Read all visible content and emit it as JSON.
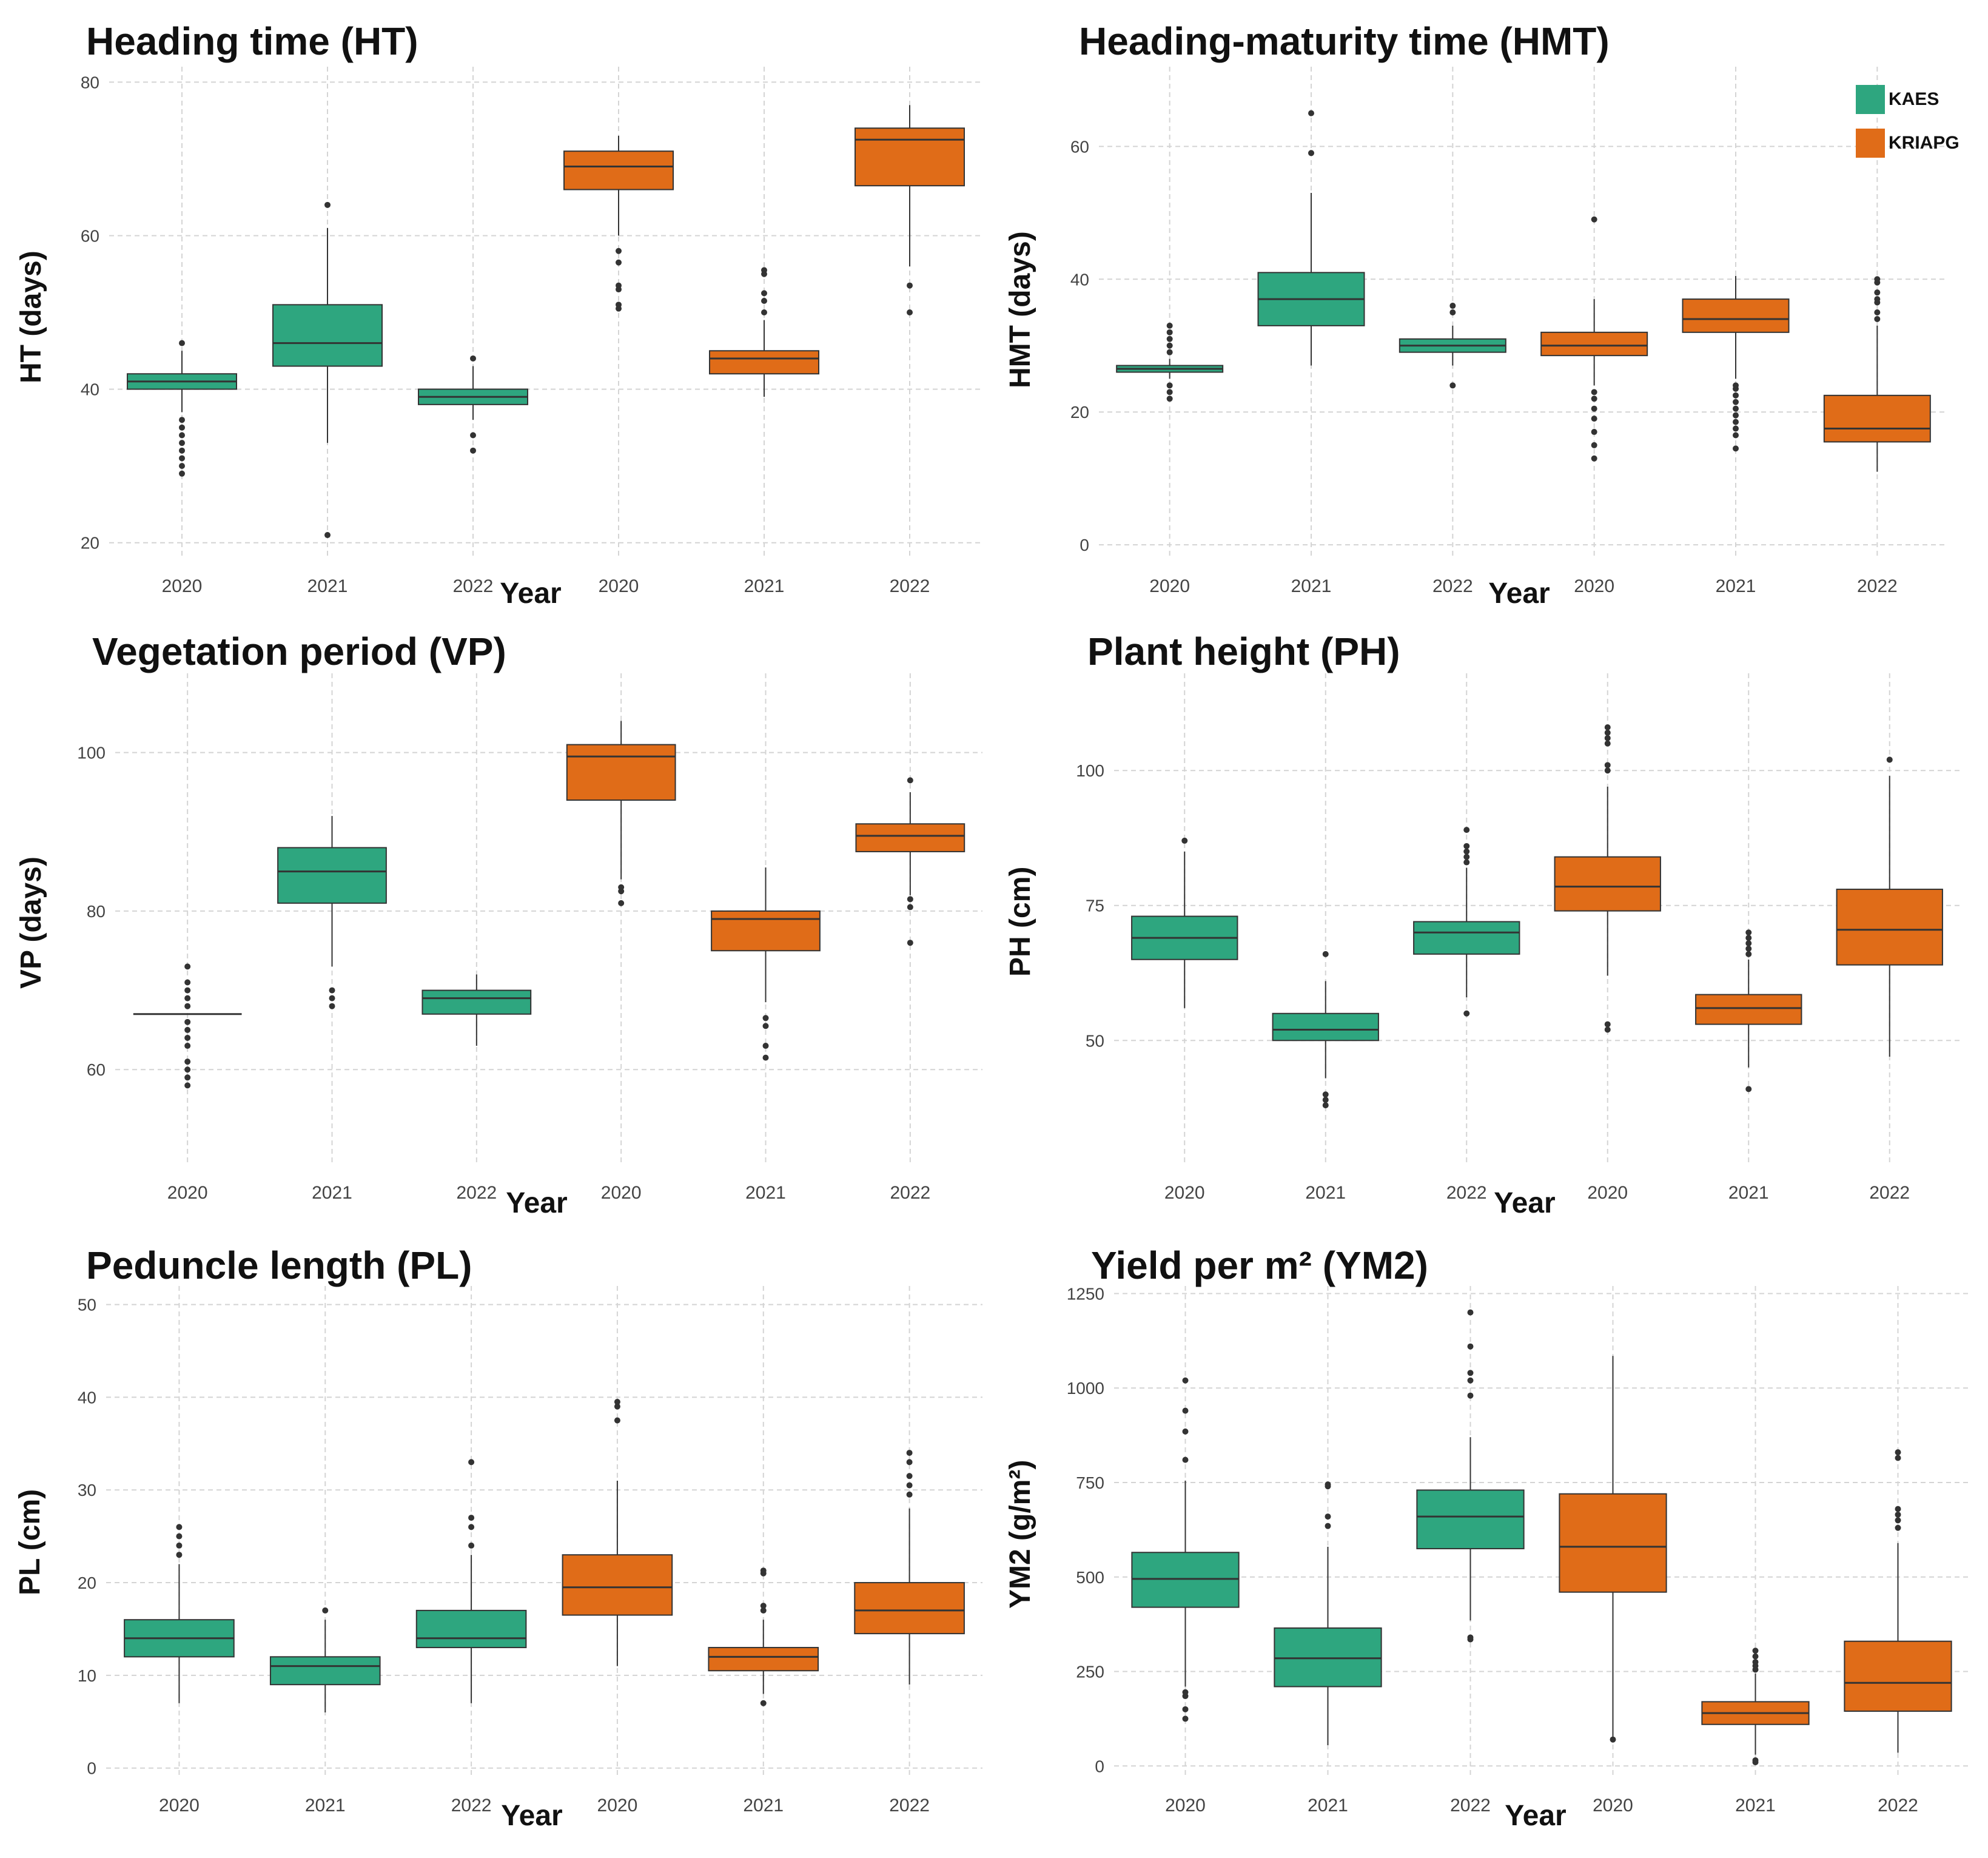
{
  "colors": {
    "KAES": "#2ea67f",
    "KRIAPG": "#e06c18",
    "grid": "#d4d4d4",
    "line": "#333333"
  },
  "legend": [
    {
      "label": "KAES",
      "color": "#2ea67f"
    },
    {
      "label": "KRIAPG",
      "color": "#e06c18"
    }
  ],
  "chart_data": [
    {
      "type": "boxplot",
      "title": "Heading time (HT)",
      "xlabel": "Year",
      "ylabel": "HT (days)",
      "ylim": [
        18,
        82
      ],
      "yticks": [
        20,
        40,
        60,
        80
      ],
      "boxes": [
        {
          "label": "2020",
          "group": "KAES",
          "whisker_low": 37,
          "q1": 40,
          "median": 41,
          "q3": 42,
          "whisker_high": 45,
          "outliers": [
            29,
            30,
            31,
            32,
            33,
            34,
            35,
            36,
            46
          ]
        },
        {
          "label": "2021",
          "group": "KAES",
          "whisker_low": 33,
          "q1": 43,
          "median": 46,
          "q3": 51,
          "whisker_high": 61,
          "outliers": [
            21,
            64
          ]
        },
        {
          "label": "2022",
          "group": "KAES",
          "whisker_low": 36,
          "q1": 38,
          "median": 39,
          "q3": 40,
          "whisker_high": 43,
          "outliers": [
            32,
            34,
            44
          ]
        },
        {
          "label": "2020",
          "group": "KRIAPG",
          "whisker_low": 60,
          "q1": 66,
          "median": 69,
          "q3": 71,
          "whisker_high": 73,
          "outliers": [
            50.5,
            51,
            53,
            53.5,
            56.5,
            58
          ]
        },
        {
          "label": "2021",
          "group": "KRIAPG",
          "whisker_low": 39,
          "q1": 42,
          "median": 44,
          "q3": 45,
          "whisker_high": 49,
          "outliers": [
            50,
            51.5,
            52.5,
            55,
            55.5
          ]
        },
        {
          "label": "2022",
          "group": "KRIAPG",
          "whisker_low": 56,
          "q1": 66.5,
          "median": 72.5,
          "q3": 74,
          "whisker_high": 77,
          "outliers": [
            50,
            53.5
          ]
        }
      ]
    },
    {
      "type": "boxplot",
      "title": "Heading-maturity time (HMT)",
      "xlabel": "Year",
      "ylabel": "HMT (days)",
      "ylim": [
        -2,
        72
      ],
      "yticks": [
        0,
        20,
        40,
        60
      ],
      "boxes": [
        {
          "label": "2020",
          "group": "KAES",
          "whisker_low": 25,
          "q1": 26,
          "median": 26.5,
          "q3": 27,
          "whisker_high": 28,
          "outliers": [
            22,
            23,
            24,
            29,
            30,
            31,
            32,
            33
          ]
        },
        {
          "label": "2021",
          "group": "KAES",
          "whisker_low": 27,
          "q1": 33,
          "median": 37,
          "q3": 41,
          "whisker_high": 53,
          "outliers": [
            59,
            65
          ]
        },
        {
          "label": "2022",
          "group": "KAES",
          "whisker_low": 27,
          "q1": 29,
          "median": 30,
          "q3": 31,
          "whisker_high": 33,
          "outliers": [
            24,
            35,
            36
          ]
        },
        {
          "label": "2020",
          "group": "KRIAPG",
          "whisker_low": 24,
          "q1": 28.5,
          "median": 30,
          "q3": 32,
          "whisker_high": 37,
          "outliers": [
            13,
            15,
            17,
            19,
            20.5,
            22,
            23,
            49
          ]
        },
        {
          "label": "2021",
          "group": "KRIAPG",
          "whisker_low": 25,
          "q1": 32,
          "median": 34,
          "q3": 37,
          "whisker_high": 40.5,
          "outliers": [
            14.5,
            16.5,
            17.5,
            18.5,
            19.5,
            20.5,
            21.5,
            22.5,
            23.5,
            24
          ]
        },
        {
          "label": "2022",
          "group": "KRIAPG",
          "whisker_low": 11,
          "q1": 15.5,
          "median": 17.5,
          "q3": 22.5,
          "whisker_high": 33,
          "outliers": [
            34,
            35,
            36.5,
            37,
            38,
            39.5,
            40
          ]
        }
      ]
    },
    {
      "type": "boxplot",
      "title": "Vegetation period (VP)",
      "xlabel": "Year",
      "ylabel": "VP (days)",
      "ylim": [
        48,
        110
      ],
      "yticks": [
        60,
        80,
        100
      ],
      "boxes": [
        {
          "label": "2020",
          "group": "KAES",
          "whisker_low": 67,
          "q1": 67,
          "median": 67,
          "q3": 67,
          "whisker_high": 67,
          "outliers": [
            58,
            59,
            60,
            61,
            63,
            64,
            65,
            66,
            68,
            69,
            70,
            71,
            73
          ]
        },
        {
          "label": "2021",
          "group": "KAES",
          "whisker_low": 73,
          "q1": 81,
          "median": 85,
          "q3": 88,
          "whisker_high": 92,
          "outliers": [
            68,
            69,
            70
          ]
        },
        {
          "label": "2022",
          "group": "KAES",
          "whisker_low": 63,
          "q1": 67,
          "median": 69,
          "q3": 70,
          "whisker_high": 72,
          "outliers": []
        },
        {
          "label": "2020",
          "group": "KRIAPG",
          "whisker_low": 84,
          "q1": 94,
          "median": 99.5,
          "q3": 101,
          "whisker_high": 104,
          "outliers": [
            81,
            82.5,
            83
          ]
        },
        {
          "label": "2021",
          "group": "KRIAPG",
          "whisker_low": 68.5,
          "q1": 75,
          "median": 79,
          "q3": 80,
          "whisker_high": 85.5,
          "outliers": [
            61.5,
            63,
            65.5,
            66.5
          ]
        },
        {
          "label": "2022",
          "group": "KRIAPG",
          "whisker_low": 82,
          "q1": 87.5,
          "median": 89.5,
          "q3": 91,
          "whisker_high": 95,
          "outliers": [
            76,
            80.5,
            81.5,
            96.5
          ]
        }
      ]
    },
    {
      "type": "boxplot",
      "title": "Plant height (PH)",
      "xlabel": "Year",
      "ylabel": "PH (cm)",
      "ylim": [
        27,
        118
      ],
      "yticks": [
        50,
        75,
        100
      ],
      "boxes": [
        {
          "label": "2020",
          "group": "KAES",
          "whisker_low": 56,
          "q1": 65,
          "median": 69,
          "q3": 73,
          "whisker_high": 85,
          "outliers": [
            87
          ]
        },
        {
          "label": "2021",
          "group": "KAES",
          "whisker_low": 43,
          "q1": 50,
          "median": 52,
          "q3": 55,
          "whisker_high": 61,
          "outliers": [
            38,
            39,
            40,
            66
          ]
        },
        {
          "label": "2022",
          "group": "KAES",
          "whisker_low": 58,
          "q1": 66,
          "median": 70,
          "q3": 72,
          "whisker_high": 82,
          "outliers": [
            55,
            83,
            84,
            85,
            86,
            89
          ]
        },
        {
          "label": "2020",
          "group": "KRIAPG",
          "whisker_low": 62,
          "q1": 74,
          "median": 78.5,
          "q3": 84,
          "whisker_high": 97,
          "outliers": [
            52,
            53,
            100,
            101,
            105,
            106,
            107,
            108
          ]
        },
        {
          "label": "2021",
          "group": "KRIAPG",
          "whisker_low": 45,
          "q1": 53,
          "median": 56,
          "q3": 58.5,
          "whisker_high": 65,
          "outliers": [
            41,
            66,
            67,
            68,
            69,
            70
          ]
        },
        {
          "label": "2022",
          "group": "KRIAPG",
          "whisker_low": 47,
          "q1": 64,
          "median": 70.5,
          "q3": 78,
          "whisker_high": 99,
          "outliers": [
            102
          ]
        }
      ]
    },
    {
      "type": "boxplot",
      "title": "Peduncle length (PL)",
      "xlabel": "Year",
      "ylabel": "PL (cm)",
      "ylim": [
        -1,
        52
      ],
      "yticks": [
        0,
        10,
        20,
        30,
        40,
        50
      ],
      "boxes": [
        {
          "label": "2020",
          "group": "KAES",
          "whisker_low": 7,
          "q1": 12,
          "median": 14,
          "q3": 16,
          "whisker_high": 22,
          "outliers": [
            23,
            24,
            25,
            26
          ]
        },
        {
          "label": "2021",
          "group": "KAES",
          "whisker_low": 6,
          "q1": 9,
          "median": 11,
          "q3": 12,
          "whisker_high": 16,
          "outliers": [
            17
          ]
        },
        {
          "label": "2022",
          "group": "KAES",
          "whisker_low": 7,
          "q1": 13,
          "median": 14,
          "q3": 17,
          "whisker_high": 23,
          "outliers": [
            24,
            26,
            27,
            33
          ]
        },
        {
          "label": "2020",
          "group": "KRIAPG",
          "whisker_low": 11,
          "q1": 16.5,
          "median": 19.5,
          "q3": 23,
          "whisker_high": 31,
          "outliers": [
            37.5,
            39,
            39.5
          ]
        },
        {
          "label": "2021",
          "group": "KRIAPG",
          "whisker_low": 8,
          "q1": 10.5,
          "median": 12,
          "q3": 13,
          "whisker_high": 16,
          "outliers": [
            7,
            17,
            17.5,
            21,
            21.3
          ]
        },
        {
          "label": "2022",
          "group": "KRIAPG",
          "whisker_low": 9,
          "q1": 14.5,
          "median": 17,
          "q3": 20,
          "whisker_high": 28,
          "outliers": [
            29.5,
            30.5,
            31.5,
            33,
            34
          ]
        }
      ]
    },
    {
      "type": "boxplot",
      "title": "Yield per m² (YM2)",
      "xlabel": "Year",
      "ylabel": "YM2 (g/m²)",
      "ylim": [
        -30,
        1270
      ],
      "yticks": [
        0,
        250,
        500,
        750,
        1000,
        1250
      ],
      "yticklabels": [
        "0",
        "250",
        "500",
        "750",
        "1000",
        "1250"
      ],
      "boxes": [
        {
          "label": "2020",
          "group": "KAES",
          "whisker_low": 210,
          "q1": 420,
          "median": 495,
          "q3": 565,
          "whisker_high": 755,
          "outliers": [
            125,
            150,
            185,
            195,
            810,
            885,
            940,
            1020
          ]
        },
        {
          "label": "2021",
          "group": "KAES",
          "whisker_low": 55,
          "q1": 210,
          "median": 285,
          "q3": 365,
          "whisker_high": 580,
          "outliers": [
            635,
            660,
            740,
            745
          ]
        },
        {
          "label": "2022",
          "group": "KAES",
          "whisker_low": 385,
          "q1": 575,
          "median": 660,
          "q3": 730,
          "whisker_high": 870,
          "outliers": [
            335,
            340,
            980,
            1020,
            1040,
            1110,
            1200
          ]
        },
        {
          "label": "2020",
          "group": "KRIAPG",
          "whisker_low": 75,
          "q1": 460,
          "median": 580,
          "q3": 720,
          "whisker_high": 1085,
          "outliers": [
            70
          ]
        },
        {
          "label": "2021",
          "group": "KRIAPG",
          "whisker_low": 30,
          "q1": 110,
          "median": 140,
          "q3": 170,
          "whisker_high": 245,
          "outliers": [
            10,
            15,
            255,
            265,
            275,
            290,
            305
          ]
        },
        {
          "label": "2022",
          "group": "KRIAPG",
          "whisker_low": 35,
          "q1": 145,
          "median": 220,
          "q3": 330,
          "whisker_high": 590,
          "outliers": [
            630,
            650,
            665,
            680,
            815,
            830
          ]
        }
      ]
    }
  ]
}
